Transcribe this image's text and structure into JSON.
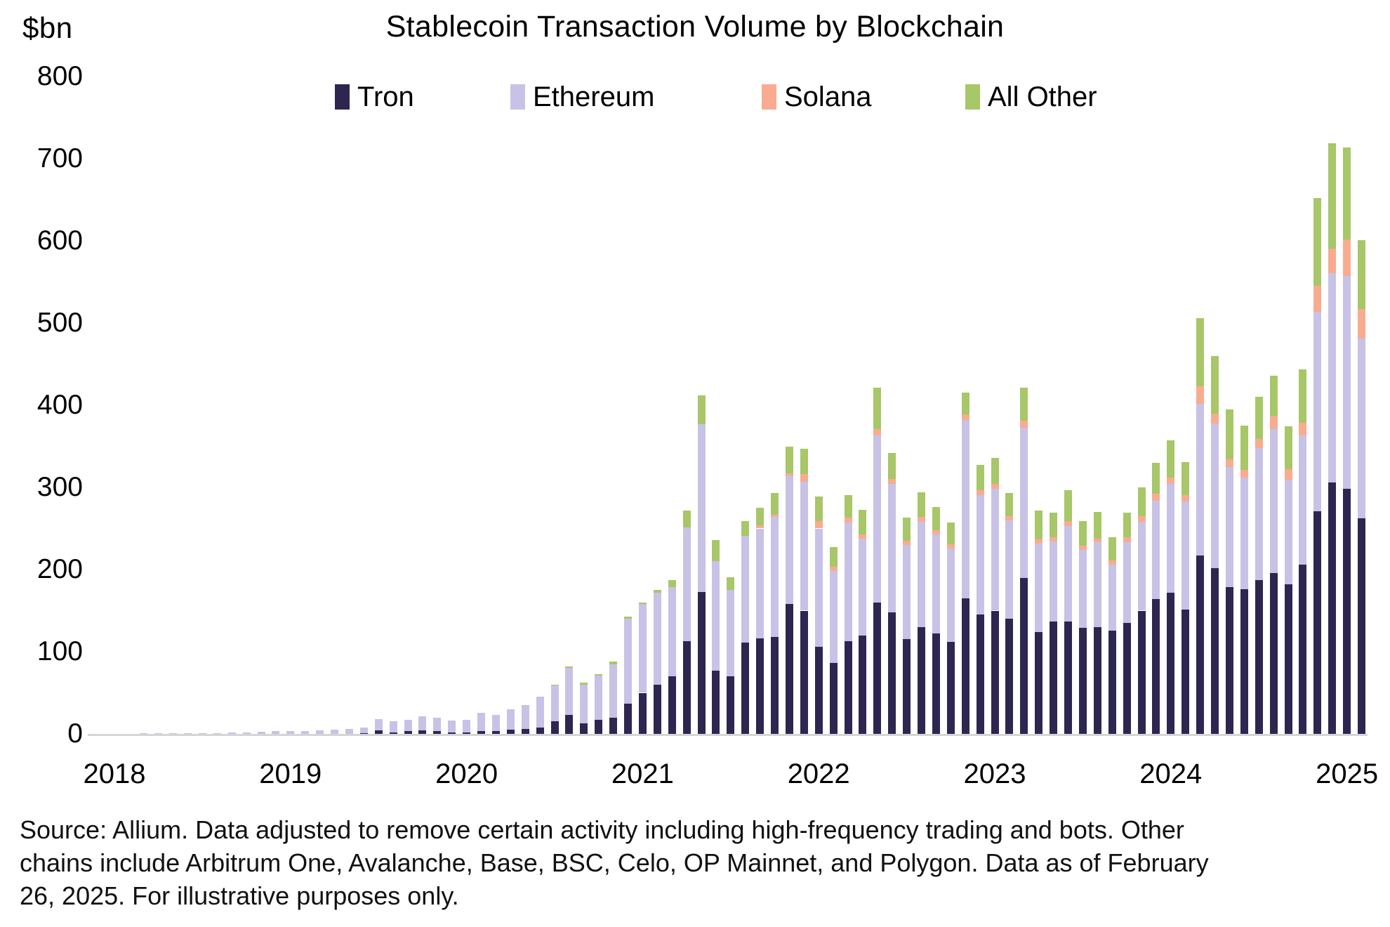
{
  "header": {
    "unit_label": "$bn",
    "title": "Stablecoin Transaction Volume by Blockchain"
  },
  "legend": {
    "items": [
      {
        "label": "Tron",
        "color": "#2e2650"
      },
      {
        "label": "Ethereum",
        "color": "#c8c2e6"
      },
      {
        "label": "Solana",
        "color": "#f9ab90"
      },
      {
        "label": "All Other",
        "color": "#a7c768"
      }
    ]
  },
  "y_axis": {
    "tick_values": [
      0,
      100,
      200,
      300,
      400,
      500,
      600,
      700,
      800
    ]
  },
  "x_axis": {
    "year_labels": [
      "2018",
      "2019",
      "2020",
      "2021",
      "2022",
      "2023",
      "2024",
      "2025"
    ]
  },
  "footer": {
    "lines": [
      "Source: Allium. Data adjusted to remove certain activity including high-frequency trading and bots. Other",
      "chains include Arbitrum One, Avalanche, Base, BSC, Celo, OP Mainnet, and Polygon. Data as of February",
      "26, 2025. For illustrative purposes only."
    ]
  },
  "chart_data": {
    "type": "bar",
    "stacked": true,
    "title": "Stablecoin Transaction Volume by Blockchain",
    "unit": "$bn",
    "ylim": [
      0,
      800
    ],
    "grid": false,
    "legend_position": "top",
    "months": [
      "2018-01",
      "2018-02",
      "2018-03",
      "2018-04",
      "2018-05",
      "2018-06",
      "2018-07",
      "2018-08",
      "2018-09",
      "2018-10",
      "2018-11",
      "2018-12",
      "2019-01",
      "2019-02",
      "2019-03",
      "2019-04",
      "2019-05",
      "2019-06",
      "2019-07",
      "2019-08",
      "2019-09",
      "2019-10",
      "2019-11",
      "2019-12",
      "2020-01",
      "2020-02",
      "2020-03",
      "2020-04",
      "2020-05",
      "2020-06",
      "2020-07",
      "2020-08",
      "2020-09",
      "2020-10",
      "2020-11",
      "2020-12",
      "2021-01",
      "2021-02",
      "2021-03",
      "2021-04",
      "2021-05",
      "2021-06",
      "2021-07",
      "2021-08",
      "2021-09",
      "2021-10",
      "2021-11",
      "2021-12",
      "2022-01",
      "2022-02",
      "2022-03",
      "2022-04",
      "2022-05",
      "2022-06",
      "2022-07",
      "2022-08",
      "2022-09",
      "2022-10",
      "2022-11",
      "2022-12",
      "2023-01",
      "2023-02",
      "2023-03",
      "2023-04",
      "2023-05",
      "2023-06",
      "2023-07",
      "2023-08",
      "2023-09",
      "2023-10",
      "2023-11",
      "2023-12",
      "2024-01",
      "2024-02",
      "2024-03",
      "2024-04",
      "2024-05",
      "2024-06",
      "2024-07",
      "2024-08",
      "2024-09",
      "2024-10",
      "2024-11",
      "2024-12",
      "2025-01",
      "2025-02"
    ],
    "series": [
      {
        "name": "Tron",
        "color": "#2e2650",
        "values": [
          0,
          0,
          0,
          0,
          0,
          0,
          0,
          0,
          0,
          0,
          0,
          0,
          0,
          0,
          0,
          0,
          0,
          0.5,
          4,
          2,
          3,
          4,
          3,
          2,
          2,
          3,
          3,
          5,
          6,
          8,
          15,
          23,
          13,
          17,
          20,
          37,
          50,
          60,
          70,
          113,
          173,
          77,
          70,
          111,
          116,
          118,
          158,
          150,
          106,
          86,
          113,
          120,
          160,
          148,
          115,
          130,
          122,
          112,
          165,
          145,
          150,
          140,
          190,
          124,
          137,
          137,
          129,
          130,
          126,
          135,
          150,
          164,
          172,
          151,
          217,
          202,
          179,
          176,
          187,
          196,
          182,
          206,
          271,
          306,
          298,
          262
        ]
      },
      {
        "name": "Ethereum",
        "color": "#c8c2e6",
        "values": [
          0.4,
          0.4,
          0.5,
          0.6,
          0.8,
          0.8,
          1,
          1.2,
          1.5,
          2,
          2.5,
          3,
          3,
          3,
          4,
          5,
          6,
          7.5,
          14,
          13,
          14,
          17,
          17,
          14,
          15,
          23,
          20,
          25,
          29,
          37,
          44,
          57,
          47,
          54,
          65,
          103,
          108,
          112,
          109,
          138,
          204,
          133,
          105,
          130,
          134,
          146,
          156,
          157,
          144,
          112,
          144,
          118,
          203,
          156,
          115,
          128,
          121,
          114,
          217,
          146,
          148,
          120,
          183,
          108,
          97,
          116,
          95,
          103,
          80,
          98,
          108,
          120,
          132,
          132,
          185,
          176,
          146,
          136,
          161,
          175,
          127,
          157,
          243,
          255,
          259,
          219
        ]
      },
      {
        "name": "Solana",
        "color": "#f9ab90",
        "values": [
          0,
          0,
          0,
          0,
          0,
          0,
          0,
          0,
          0,
          0,
          0,
          0,
          0,
          0,
          0,
          0,
          0,
          0,
          0,
          0,
          0,
          0,
          0,
          0,
          0,
          0,
          0,
          0,
          0,
          0,
          0,
          0,
          0,
          0,
          0,
          0,
          0,
          0,
          0,
          0,
          0,
          0,
          0,
          0,
          4,
          3,
          3,
          9,
          9,
          5,
          6,
          5,
          8,
          6,
          5,
          6,
          5,
          5,
          7,
          6,
          6,
          5,
          8,
          5,
          5,
          6,
          5,
          5,
          5,
          6,
          7,
          8,
          8,
          8,
          21,
          12,
          9,
          9,
          11,
          16,
          13,
          16,
          31,
          30,
          45,
          36
        ]
      },
      {
        "name": "All Other",
        "color": "#a7c768",
        "values": [
          0,
          0,
          0,
          0,
          0,
          0,
          0,
          0,
          0,
          0,
          0,
          0,
          0,
          0,
          0,
          0,
          0,
          0,
          0,
          0,
          0,
          0,
          0,
          0,
          0,
          0,
          0,
          0,
          0,
          0,
          1,
          2,
          2,
          2,
          3,
          3,
          2,
          3,
          8,
          21,
          35,
          26,
          16,
          18,
          21,
          26,
          33,
          31,
          30,
          24,
          28,
          30,
          50,
          32,
          28,
          30,
          28,
          26,
          26,
          30,
          32,
          28,
          40,
          35,
          30,
          38,
          30,
          32,
          28,
          30,
          35,
          38,
          45,
          40,
          83,
          70,
          61,
          54,
          51,
          49,
          52,
          65,
          107,
          128,
          112,
          84
        ]
      }
    ]
  }
}
